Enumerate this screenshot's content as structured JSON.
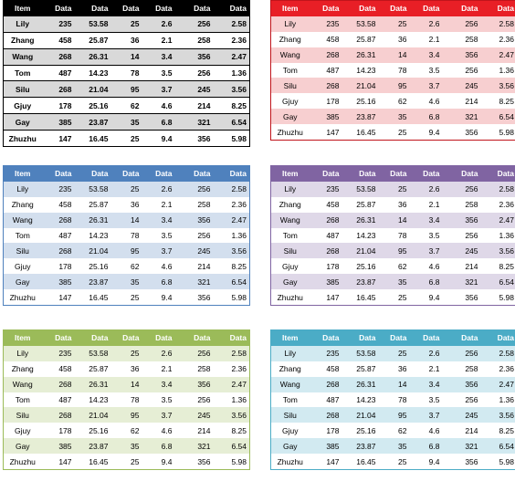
{
  "headers": [
    "Item",
    "Data",
    "Data",
    "Data",
    "Data",
    "Data",
    "Data"
  ],
  "rows": [
    [
      "Lily",
      "235",
      "53.58",
      "25",
      "2.6",
      "256",
      "2.58"
    ],
    [
      "Zhang",
      "458",
      "25.87",
      "36",
      "2.1",
      "258",
      "2.36"
    ],
    [
      "Wang",
      "268",
      "26.31",
      "14",
      "3.4",
      "356",
      "2.47"
    ],
    [
      "Tom",
      "487",
      "14.23",
      "78",
      "3.5",
      "256",
      "1.36"
    ],
    [
      "Silu",
      "268",
      "21.04",
      "95",
      "3.7",
      "245",
      "3.56"
    ],
    [
      "Gjuy",
      "178",
      "25.16",
      "62",
      "4.6",
      "214",
      "8.25"
    ],
    [
      "Gay",
      "385",
      "23.87",
      "35",
      "6.8",
      "321",
      "6.54"
    ],
    [
      "Zhuzhu",
      "147",
      "16.45",
      "25",
      "9.4",
      "356",
      "5.98"
    ]
  ],
  "tables": [
    {
      "id": "t1",
      "style": "black",
      "header_color": "#000000",
      "band_color": "#d9d9d9"
    },
    {
      "id": "t2",
      "style": "red",
      "header_color": "#e81f26",
      "band_color": "#f7cfd0"
    },
    {
      "id": "t3",
      "style": "blue",
      "header_color": "#4f81bd",
      "band_color": "#d3dfee"
    },
    {
      "id": "t4",
      "style": "purple",
      "header_color": "#8064a2",
      "band_color": "#dfd8e8"
    },
    {
      "id": "t5",
      "style": "green",
      "header_color": "#9bbb59",
      "band_color": "#e6eed5"
    },
    {
      "id": "t6",
      "style": "teal",
      "header_color": "#4bacc6",
      "band_color": "#d2eaf1"
    }
  ]
}
